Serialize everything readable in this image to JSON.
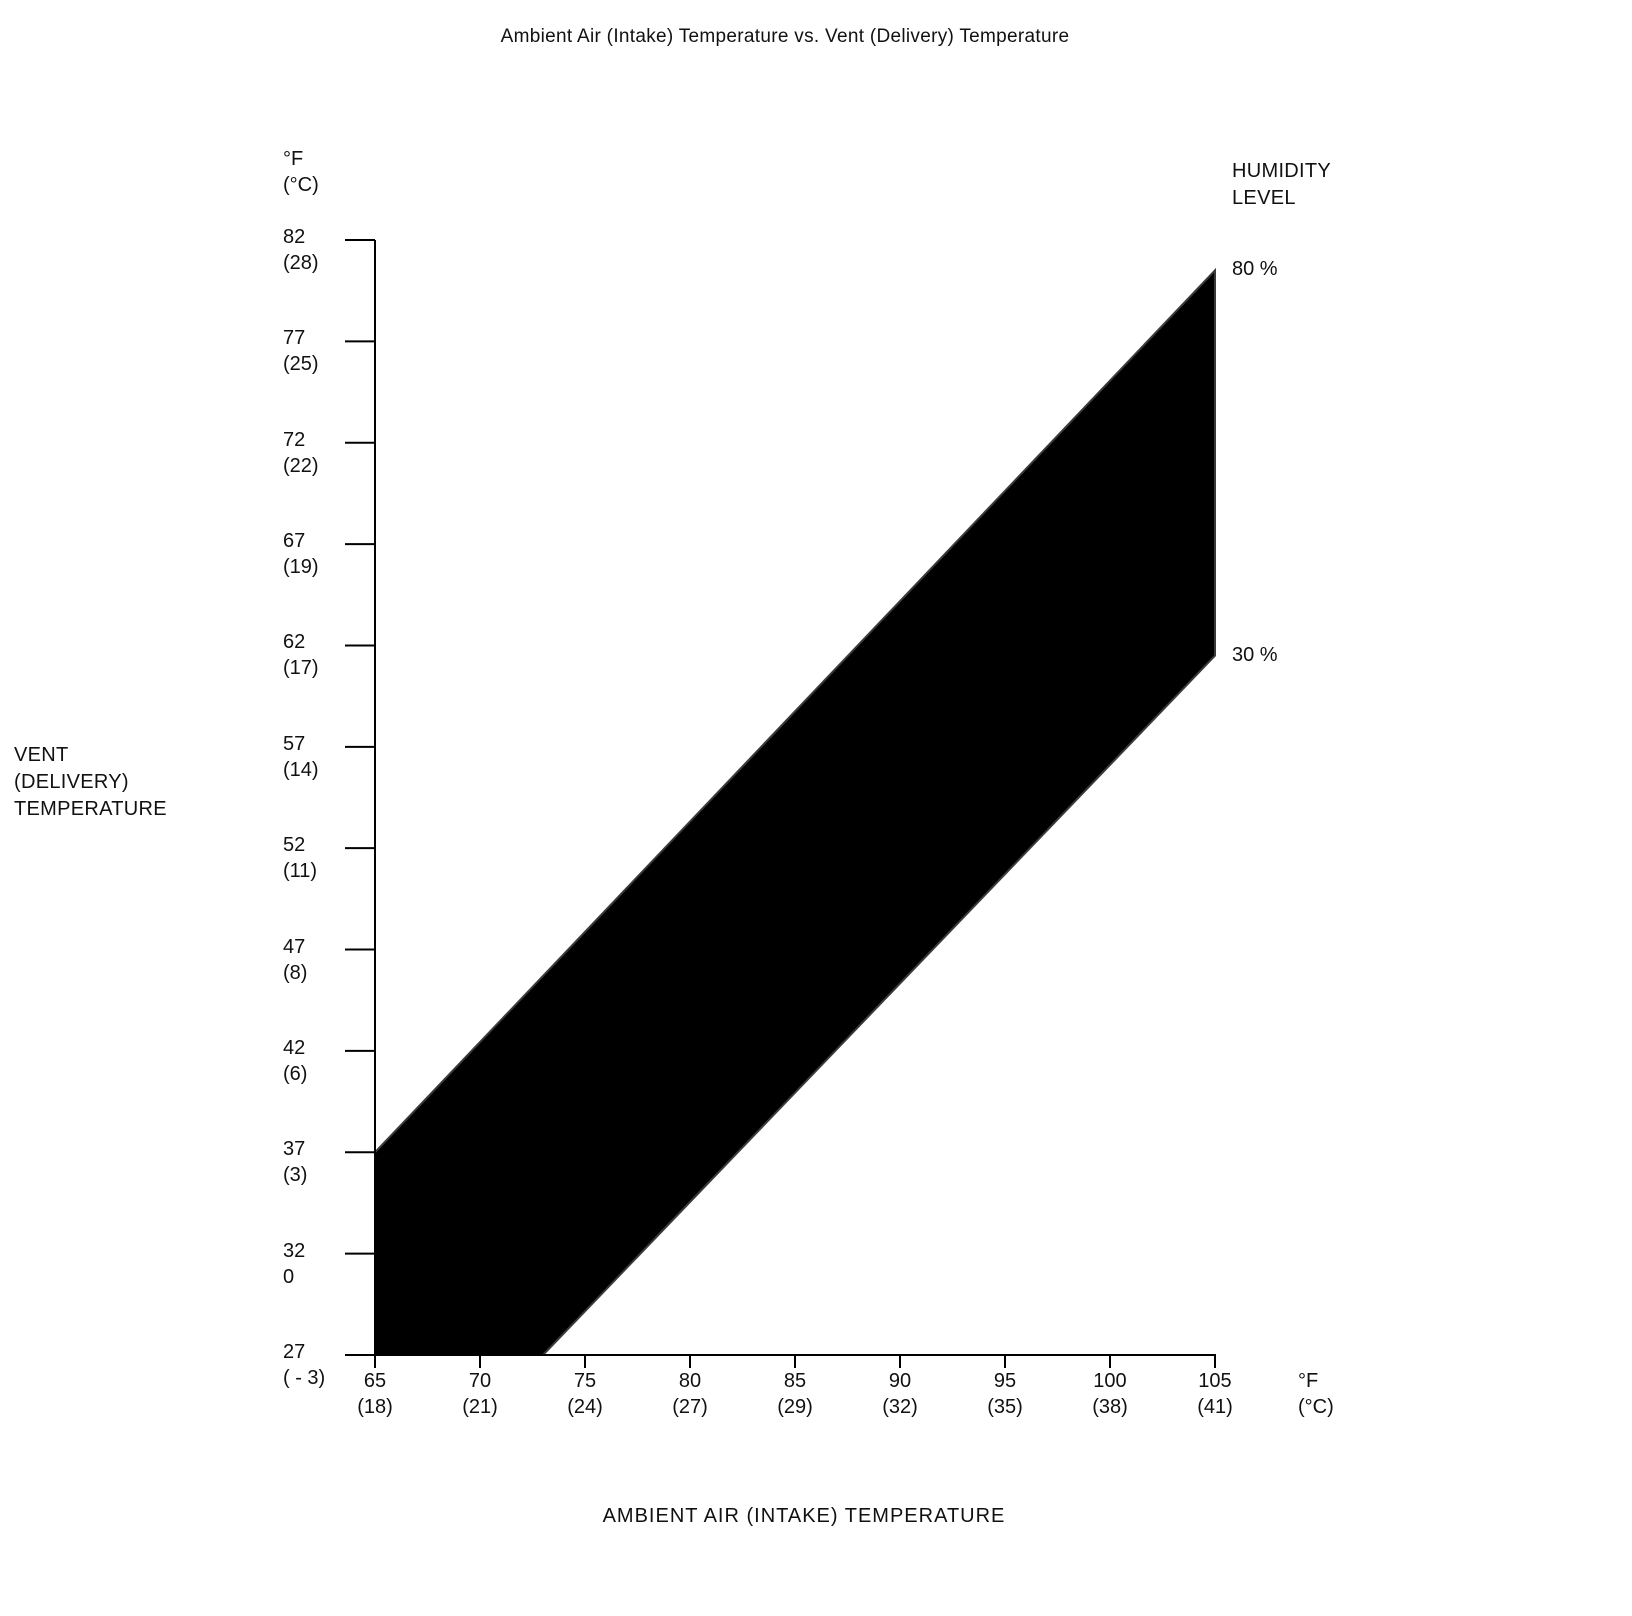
{
  "chart_data": {
    "type": "area",
    "title": "Ambient Air (Intake) Temperature vs. Vent (Delivery) Temperature",
    "x_axis": {
      "label": "AMBIENT AIR (INTAKE) TEMPERATURE",
      "unit_lines": [
        "°F",
        "(°C)"
      ],
      "range_f": [
        65,
        105
      ],
      "ticks": [
        {
          "f": "65",
          "c": "(18)",
          "value": 65
        },
        {
          "f": "70",
          "c": "(21)",
          "value": 70
        },
        {
          "f": "75",
          "c": "(24)",
          "value": 75
        },
        {
          "f": "80",
          "c": "(27)",
          "value": 80
        },
        {
          "f": "85",
          "c": "(29)",
          "value": 85
        },
        {
          "f": "90",
          "c": "(32)",
          "value": 90
        },
        {
          "f": "95",
          "c": "(35)",
          "value": 95
        },
        {
          "f": "100",
          "c": "(38)",
          "value": 100
        },
        {
          "f": "105",
          "c": "(41)",
          "value": 105
        }
      ]
    },
    "y_axis": {
      "label_lines": [
        "VENT",
        "(DELIVERY)",
        "TEMPERATURE"
      ],
      "unit_lines": [
        "°F",
        "(°C)"
      ],
      "range_f": [
        27,
        82
      ],
      "ticks": [
        {
          "f": "82",
          "c": "(28)",
          "value": 82
        },
        {
          "f": "77",
          "c": "(25)",
          "value": 77
        },
        {
          "f": "72",
          "c": "(22)",
          "value": 72
        },
        {
          "f": "67",
          "c": "(19)",
          "value": 67
        },
        {
          "f": "62",
          "c": "(17)",
          "value": 62
        },
        {
          "f": "57",
          "c": "(14)",
          "value": 57
        },
        {
          "f": "52",
          "c": "(11)",
          "value": 52
        },
        {
          "f": "47",
          "c": "(8)",
          "value": 47
        },
        {
          "f": "42",
          "c": "(6)",
          "value": 42
        },
        {
          "f": "37",
          "c": "(3)",
          "value": 37
        },
        {
          "f": "32",
          "c": "0",
          "value": 32
        },
        {
          "f": "27",
          "c": "( - 3)",
          "value": 27
        }
      ]
    },
    "legend": {
      "title_lines": [
        "HUMIDITY",
        "LEVEL"
      ]
    },
    "series": [
      {
        "name": "80 %",
        "boundary": "upper",
        "points_f": [
          [
            65,
            37
          ],
          [
            105,
            80.5
          ]
        ]
      },
      {
        "name": "30 %",
        "boundary": "lower",
        "points_f": [
          [
            73,
            27
          ],
          [
            105,
            61.5
          ]
        ]
      }
    ],
    "band_polygon_f": [
      [
        65,
        37
      ],
      [
        105,
        80.5
      ],
      [
        105,
        61.5
      ],
      [
        73,
        27
      ],
      [
        65,
        27
      ]
    ],
    "band_color": "#000000"
  }
}
